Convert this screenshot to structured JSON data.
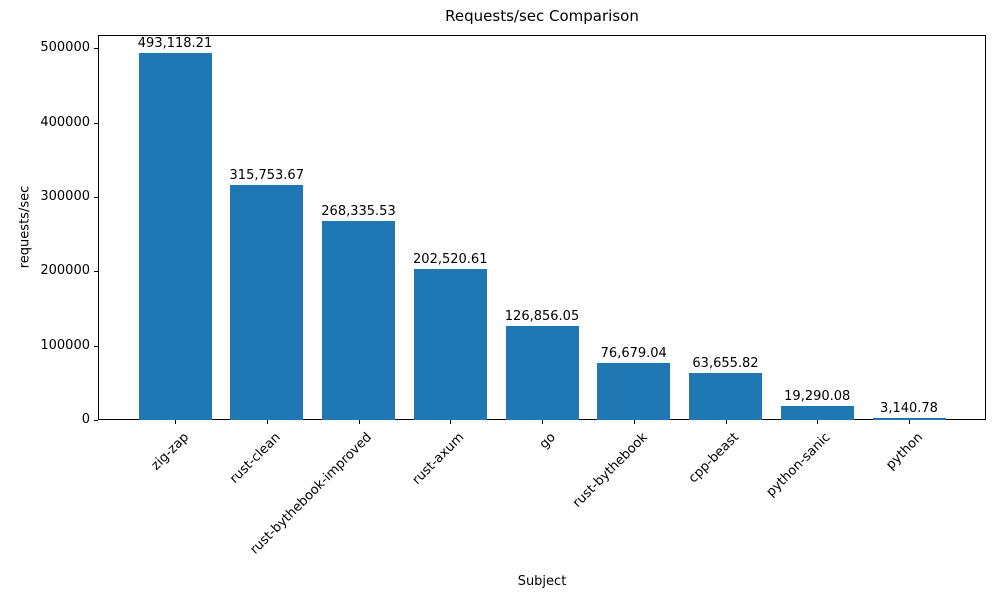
{
  "chart_data": {
    "type": "bar",
    "title": "Requests/sec Comparison",
    "xlabel": "Subject",
    "ylabel": "requests/sec",
    "categories": [
      "zig-zap",
      "rust-clean",
      "rust-bythebook-improved",
      "rust-axum",
      "go",
      "rust-bythebook",
      "cpp-beast",
      "python-sanic",
      "python"
    ],
    "values": [
      493118.21,
      315753.67,
      268335.53,
      202520.61,
      126856.05,
      76679.04,
      63655.82,
      19290.08,
      3140.78
    ],
    "bar_labels": [
      "493,118.21",
      "315,753.67",
      "268,335.53",
      "202,520.61",
      "126,856.05",
      "76,679.04",
      "63,655.82",
      "19,290.08",
      "3,140.78"
    ],
    "ytick_values": [
      0,
      100000,
      200000,
      300000,
      400000,
      500000
    ],
    "ytick_labels": [
      "0",
      "100000",
      "200000",
      "300000",
      "400000",
      "500000"
    ],
    "ylim": [
      0,
      518000
    ],
    "grid": false,
    "legend": "none",
    "bar_color": "#1f77b4",
    "text_color": "#000000",
    "background_color": "#ffffff"
  }
}
